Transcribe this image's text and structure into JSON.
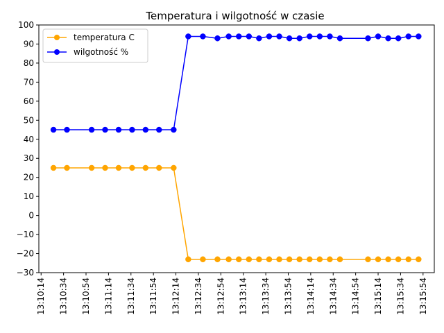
{
  "chart_data": {
    "type": "line",
    "title": "Temperatura i wilgotność w czasie",
    "xlabel": "",
    "ylabel": "",
    "ylim": [
      -30,
      100
    ],
    "yticks": [
      -30,
      -20,
      -10,
      0,
      10,
      20,
      30,
      40,
      50,
      60,
      70,
      80,
      90,
      100
    ],
    "xlim": [
      "13:10:12",
      "13:16:04"
    ],
    "xticks": [
      "13:10:14",
      "13:10:34",
      "13:10:54",
      "13:11:14",
      "13:11:34",
      "13:11:54",
      "13:12:14",
      "13:12:34",
      "13:12:54",
      "13:13:14",
      "13:13:34",
      "13:13:54",
      "13:14:14",
      "13:14:34",
      "13:14:54",
      "13:15:14",
      "13:15:34",
      "13:15:54"
    ],
    "x_tick_rotation": 90,
    "grid": false,
    "legend_position": "top-left",
    "x": [
      "13:10:25",
      "13:10:37",
      "13:10:59",
      "13:11:11",
      "13:11:23",
      "13:11:35",
      "13:11:47",
      "13:11:59",
      "13:12:12",
      "13:12:25",
      "13:12:38",
      "13:12:51",
      "13:13:01",
      "13:13:10",
      "13:13:19",
      "13:13:28",
      "13:13:37",
      "13:13:46",
      "13:13:55",
      "13:14:04",
      "13:14:13",
      "13:14:22",
      "13:14:31",
      "13:14:40",
      "13:15:05",
      "13:15:14",
      "13:15:23",
      "13:15:32",
      "13:15:41",
      "13:15:50"
    ],
    "series": [
      {
        "name": "temperatura C",
        "color": "#FFA500",
        "values": [
          25,
          25,
          25,
          25,
          25,
          25,
          25,
          25,
          25,
          -23,
          -23,
          -23,
          -23,
          -23,
          -23,
          -23,
          -23,
          -23,
          -23,
          -23,
          -23,
          -23,
          -23,
          -23,
          -23,
          -23,
          -23,
          -23,
          -23,
          -23
        ]
      },
      {
        "name": "wilgotność %",
        "color": "#0000FF",
        "values": [
          45,
          45,
          45,
          45,
          45,
          45,
          45,
          45,
          45,
          94,
          94,
          93,
          94,
          94,
          94,
          93,
          94,
          94,
          93,
          93,
          94,
          94,
          94,
          93,
          93,
          94,
          93,
          93,
          94,
          94
        ]
      }
    ]
  }
}
